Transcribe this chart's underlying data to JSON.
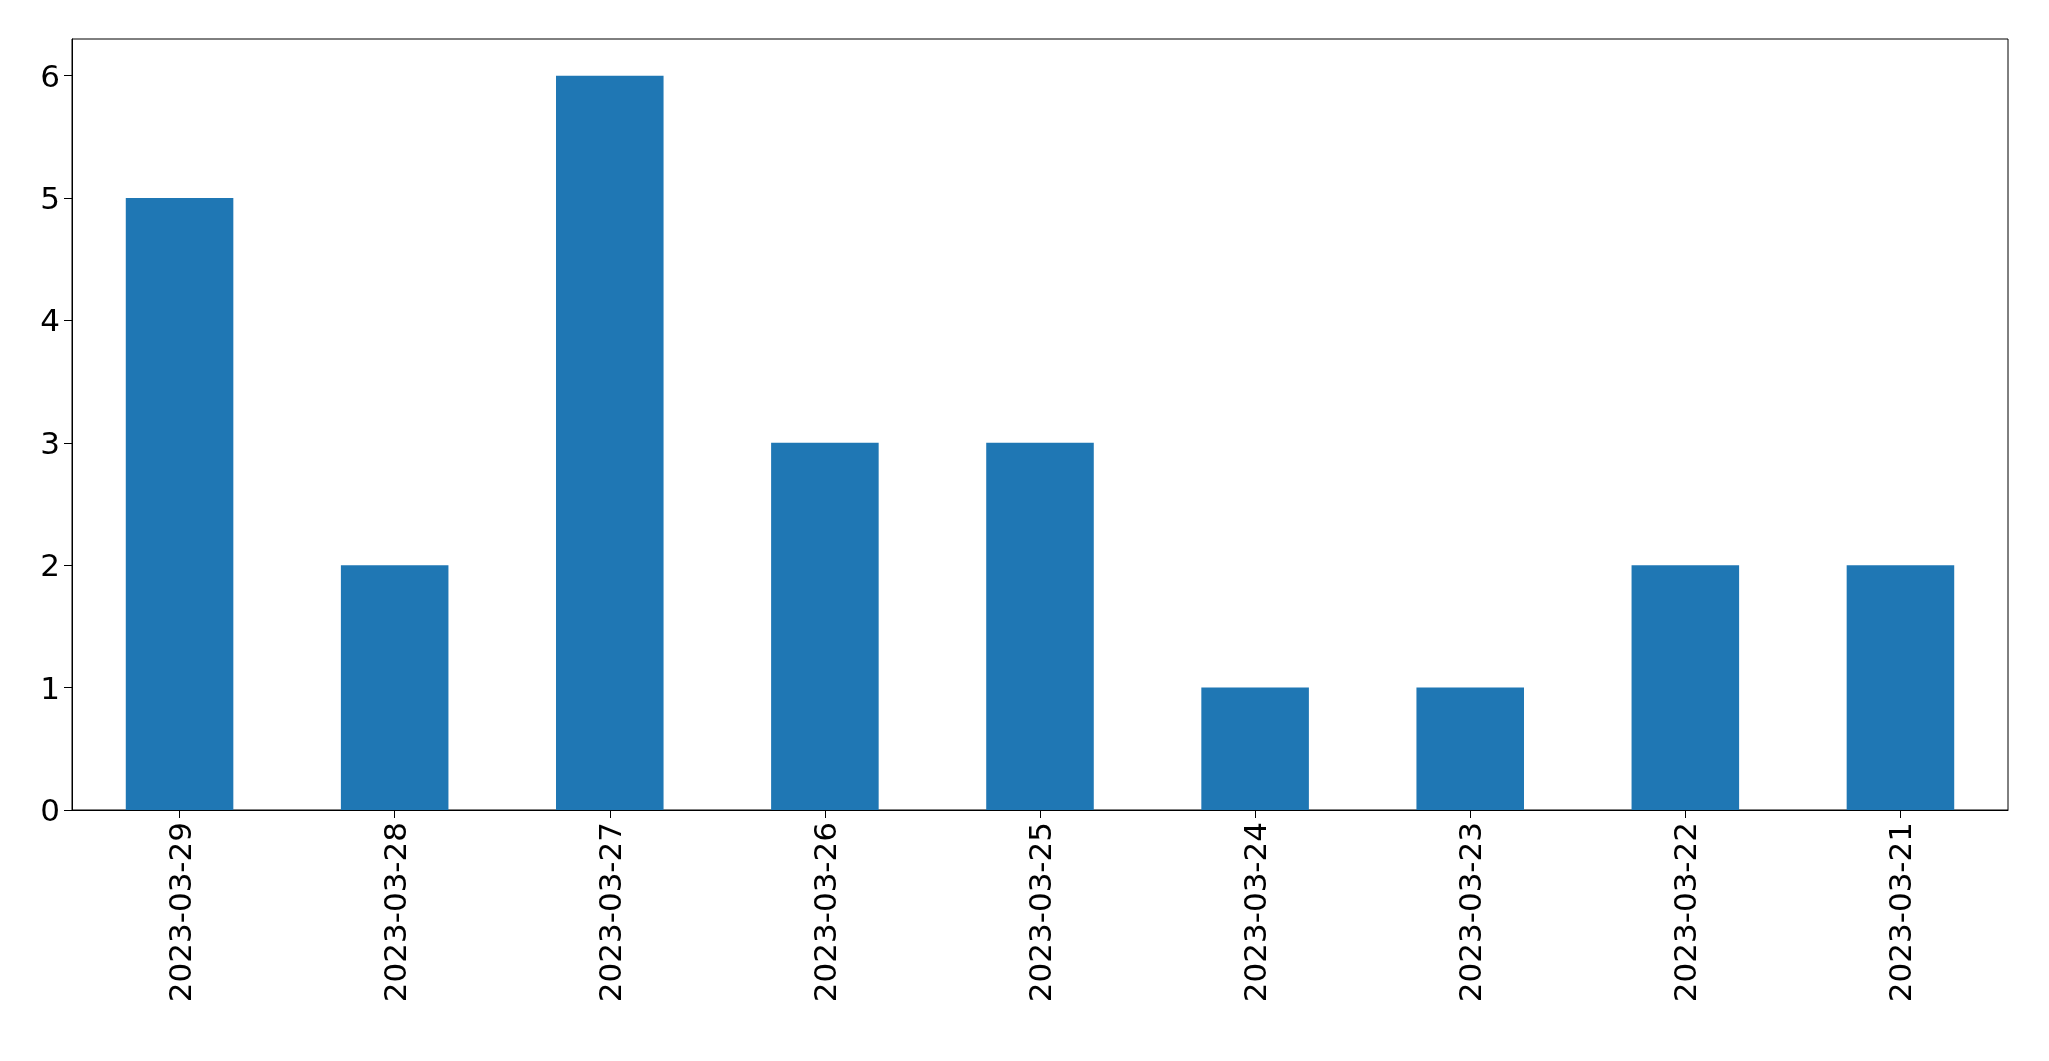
{
  "chart_data": {
    "type": "bar",
    "categories": [
      "2023-03-29",
      "2023-03-28",
      "2023-03-27",
      "2023-03-26",
      "2023-03-25",
      "2023-03-24",
      "2023-03-23",
      "2023-03-22",
      "2023-03-21"
    ],
    "values": [
      5,
      2,
      6,
      3,
      3,
      1,
      1,
      2,
      2
    ],
    "color": "#1f77b4",
    "ylim": [
      0,
      6.3
    ],
    "yticks": [
      0,
      1,
      2,
      3,
      4,
      5,
      6
    ],
    "grid": false
  }
}
